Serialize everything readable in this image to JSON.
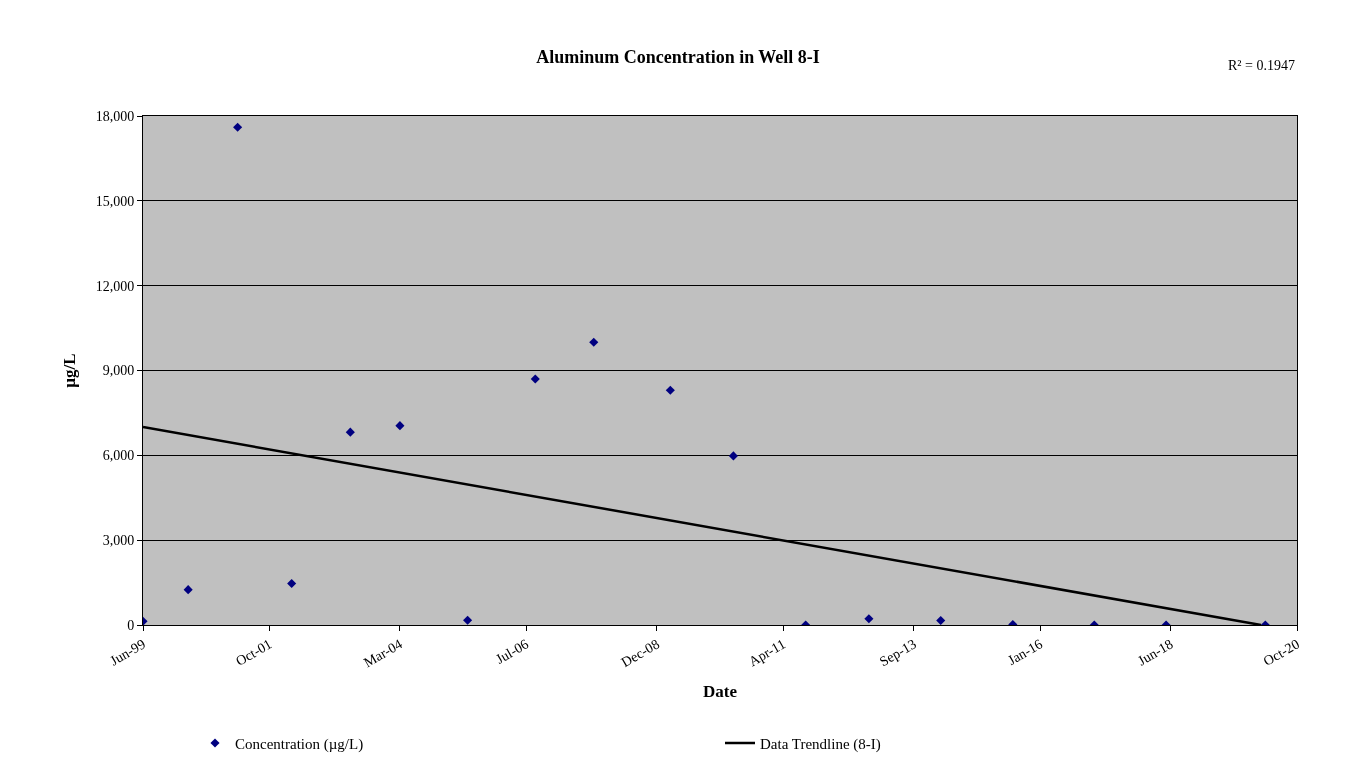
{
  "chart_data": {
    "type": "scatter",
    "title": "Aluminum Concentration in Well 8-I",
    "xlabel": "Date",
    "ylabel": "µg/L",
    "annotations": [
      "R² = 0.1947"
    ],
    "x": [
      "1999-06",
      "2000-04",
      "2001-03",
      "2002-03",
      "2003-04",
      "2004-03",
      "2005-06",
      "2006-09",
      "2007-10",
      "2009-03",
      "2010-05",
      "2011-09",
      "2012-11",
      "2014-03",
      "2015-07",
      "2017-01",
      "2018-05",
      "2020-03"
    ],
    "series": [
      {
        "name": "Concentration (µg/L)",
        "color": "#000080",
        "marker": "diamond",
        "values": [
          130,
          1250,
          17600,
          1470,
          6820,
          7050,
          170,
          8700,
          10000,
          8300,
          5980,
          0,
          220,
          160,
          20,
          0,
          0,
          0
        ]
      },
      {
        "name": "Data Trendline (8-I)",
        "color": "#000000",
        "type": "line",
        "marker": "none",
        "line_style": "solid",
        "x": [
          "1999-06-01",
          "2020-02-01"
        ],
        "values": [
          7000,
          0
        ]
      }
    ],
    "xlim": [
      "1999-06-01",
      "2020-10-01"
    ],
    "xticks": [
      {
        "value": "1999-06-01",
        "label": "Jun-99"
      },
      {
        "value": "2001-10-01",
        "label": "Oct-01"
      },
      {
        "value": "2004-03-01",
        "label": "Mar-04"
      },
      {
        "value": "2006-07-01",
        "label": "Jul-06"
      },
      {
        "value": "2008-12-01",
        "label": "Dec-08"
      },
      {
        "value": "2011-04-01",
        "label": "Apr-11"
      },
      {
        "value": "2013-09-01",
        "label": "Sep-13"
      },
      {
        "value": "2016-01-01",
        "label": "Jan-16"
      },
      {
        "value": "2018-06-01",
        "label": "Jun-18"
      },
      {
        "value": "2020-10-01",
        "label": "Oct-20"
      }
    ],
    "ylim": [
      0,
      18000
    ],
    "yticks": [
      0,
      {
        "value": 3000,
        "label": "3,000"
      },
      {
        "value": 6000,
        "label": "6,000"
      },
      {
        "value": 9000,
        "label": "9,000"
      },
      {
        "value": 12000,
        "label": "12,000"
      },
      {
        "value": 15000,
        "label": "15,000"
      },
      {
        "value": 18000,
        "label": "18,000"
      }
    ],
    "grid": "y",
    "legend": "bottom"
  }
}
